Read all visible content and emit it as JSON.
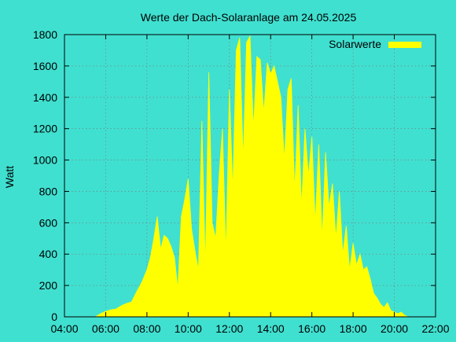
{
  "chart_data": {
    "type": "area",
    "title": "Werte der Dach-Solaranlage am 24.05.2025",
    "xlabel": "",
    "ylabel": "Watt",
    "x_range": [
      "04:00",
      "22:00"
    ],
    "ylim": [
      0,
      1800
    ],
    "x_ticks": [
      "04:00",
      "06:00",
      "08:00",
      "10:00",
      "12:00",
      "14:00",
      "16:00",
      "18:00",
      "20:00",
      "22:00"
    ],
    "y_ticks": [
      0,
      200,
      400,
      600,
      800,
      1000,
      1200,
      1400,
      1600,
      1800
    ],
    "grid": true,
    "legend_position": "top-right",
    "series": [
      {
        "name": "Solarwerte",
        "color": "#ffff00",
        "points": [
          [
            "05:30",
            0
          ],
          [
            "05:45",
            20
          ],
          [
            "06:00",
            35
          ],
          [
            "06:15",
            45
          ],
          [
            "06:30",
            50
          ],
          [
            "06:45",
            70
          ],
          [
            "07:00",
            85
          ],
          [
            "07:15",
            95
          ],
          [
            "07:30",
            160
          ],
          [
            "07:45",
            220
          ],
          [
            "08:00",
            300
          ],
          [
            "08:10",
            380
          ],
          [
            "08:20",
            500
          ],
          [
            "08:30",
            640
          ],
          [
            "08:40",
            430
          ],
          [
            "08:50",
            520
          ],
          [
            "09:00",
            500
          ],
          [
            "09:10",
            450
          ],
          [
            "09:20",
            380
          ],
          [
            "09:30",
            180
          ],
          [
            "09:40",
            640
          ],
          [
            "09:50",
            750
          ],
          [
            "10:00",
            880
          ],
          [
            "10:10",
            560
          ],
          [
            "10:20",
            420
          ],
          [
            "10:30",
            300
          ],
          [
            "10:40",
            1250
          ],
          [
            "10:50",
            320
          ],
          [
            "11:00",
            1560
          ],
          [
            "11:10",
            600
          ],
          [
            "11:20",
            500
          ],
          [
            "11:30",
            900
          ],
          [
            "11:40",
            1200
          ],
          [
            "11:50",
            400
          ],
          [
            "12:00",
            1450
          ],
          [
            "12:10",
            800
          ],
          [
            "12:20",
            1700
          ],
          [
            "12:30",
            1780
          ],
          [
            "12:40",
            1000
          ],
          [
            "12:50",
            1750
          ],
          [
            "13:00",
            1790
          ],
          [
            "13:10",
            1200
          ],
          [
            "13:20",
            1660
          ],
          [
            "13:30",
            1640
          ],
          [
            "13:40",
            1300
          ],
          [
            "13:50",
            1620
          ],
          [
            "14:00",
            1550
          ],
          [
            "14:10",
            1600
          ],
          [
            "14:20",
            1500
          ],
          [
            "14:30",
            1400
          ],
          [
            "14:40",
            1000
          ],
          [
            "14:50",
            1450
          ],
          [
            "15:00",
            1520
          ],
          [
            "15:10",
            800
          ],
          [
            "15:20",
            1350
          ],
          [
            "15:30",
            700
          ],
          [
            "15:40",
            1200
          ],
          [
            "15:50",
            900
          ],
          [
            "16:00",
            1150
          ],
          [
            "16:10",
            600
          ],
          [
            "16:20",
            1100
          ],
          [
            "16:30",
            500
          ],
          [
            "16:40",
            1050
          ],
          [
            "16:50",
            700
          ],
          [
            "17:00",
            850
          ],
          [
            "17:10",
            500
          ],
          [
            "17:20",
            800
          ],
          [
            "17:30",
            400
          ],
          [
            "17:40",
            580
          ],
          [
            "17:50",
            300
          ],
          [
            "18:00",
            470
          ],
          [
            "18:10",
            330
          ],
          [
            "18:20",
            400
          ],
          [
            "18:30",
            300
          ],
          [
            "18:40",
            320
          ],
          [
            "18:50",
            240
          ],
          [
            "19:00",
            150
          ],
          [
            "19:10",
            120
          ],
          [
            "19:20",
            80
          ],
          [
            "19:30",
            60
          ],
          [
            "19:40",
            90
          ],
          [
            "19:50",
            40
          ],
          [
            "20:00",
            30
          ],
          [
            "20:10",
            20
          ],
          [
            "20:20",
            30
          ],
          [
            "20:30",
            10
          ],
          [
            "20:40",
            0
          ]
        ]
      }
    ]
  }
}
